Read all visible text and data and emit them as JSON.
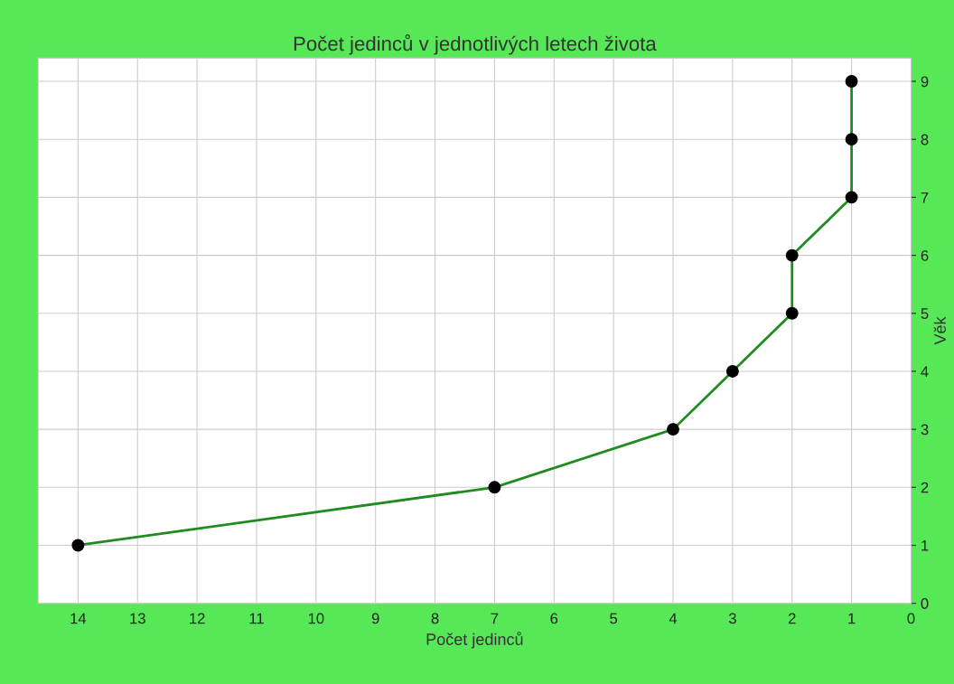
{
  "chart_data": {
    "type": "line",
    "title": "Počet jedinců v jednotlivých letech života",
    "xlabel": "Počet jedinců",
    "ylabel": "Věk",
    "series": [
      {
        "color": "#1e8c1e",
        "x": [
          14,
          7,
          4,
          3,
          2,
          2,
          1,
          1,
          1
        ],
        "values": [
          1,
          2,
          3,
          4,
          5,
          6,
          7,
          8,
          9
        ]
      }
    ],
    "xlim": [
      14.67,
      0
    ],
    "xticks": [
      14,
      13,
      12,
      11,
      10,
      9,
      8,
      7,
      6,
      5,
      4,
      3,
      2,
      1,
      0
    ],
    "ylim": [
      0,
      9.4
    ],
    "yticks": [
      0,
      1,
      2,
      3,
      4,
      5,
      6,
      7,
      8,
      9
    ],
    "grid": true,
    "marker": "circle",
    "line_style": "solid"
  }
}
